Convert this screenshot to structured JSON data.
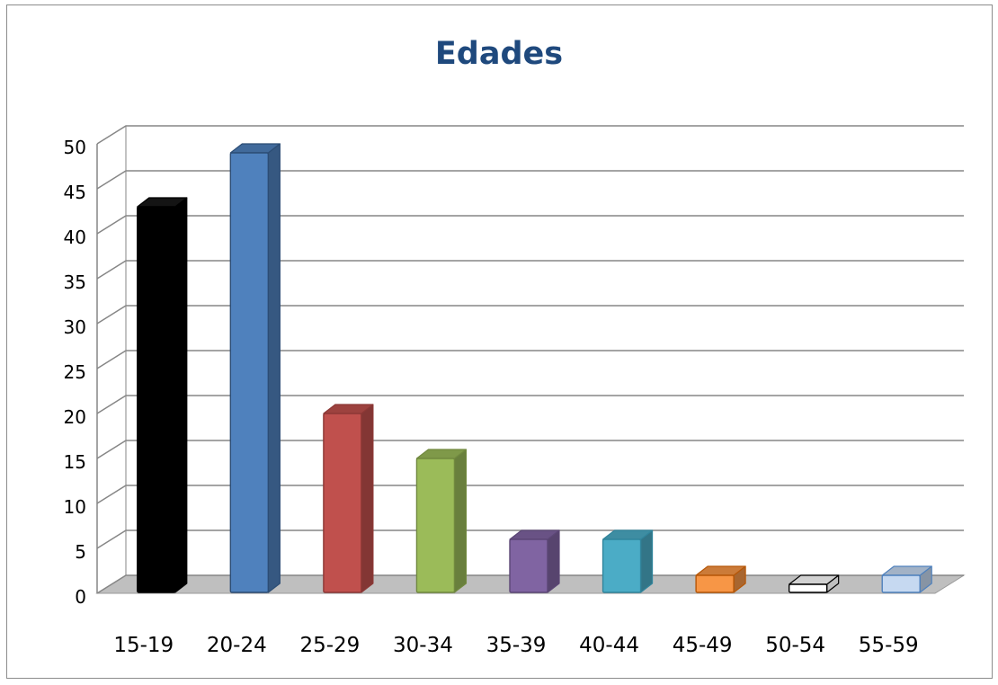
{
  "chart_data": {
    "type": "bar",
    "title": "Edades",
    "xlabel": "",
    "ylabel": "",
    "ylim": [
      0,
      50
    ],
    "yticks": [
      0,
      5,
      10,
      15,
      20,
      25,
      30,
      35,
      40,
      45,
      50
    ],
    "grid": true,
    "legend": "none",
    "style": "3d-clustered-column",
    "categories": [
      "15-19",
      "20-24",
      "25-29",
      "30-34",
      "35-39",
      "40-44",
      "45-49",
      "50-54",
      "55-59"
    ],
    "values": [
      43,
      49,
      20,
      15,
      6,
      6,
      2,
      1,
      2
    ],
    "bar_colors": [
      "#000000",
      "#4f81bd",
      "#c0504d",
      "#9bbb59",
      "#8064a2",
      "#4bacc6",
      "#f79646",
      "#ffffff",
      "#c6d9f1"
    ],
    "bar_borders": [
      "#000000",
      "#2c4d75",
      "#8c3836",
      "#71893f",
      "#5c4776",
      "#31859c",
      "#b65708",
      "#000000",
      "#4f81bd"
    ]
  }
}
